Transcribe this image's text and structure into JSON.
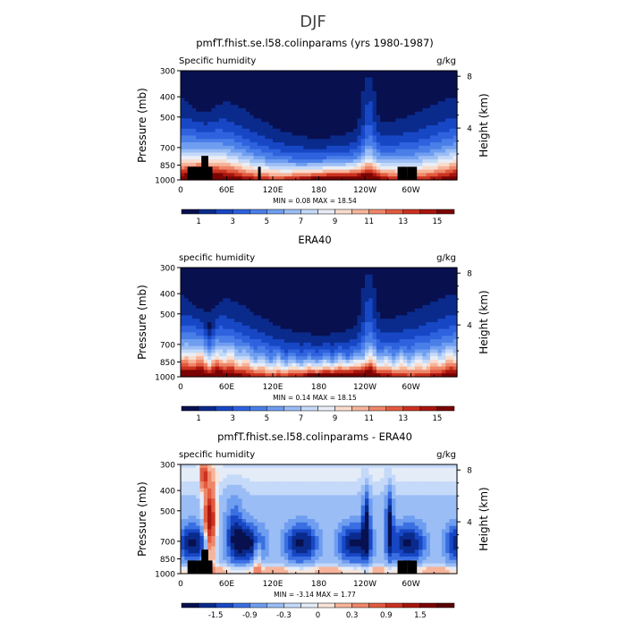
{
  "page_title": "DJF",
  "chart_data": [
    {
      "type": "heatmap",
      "title": "pmfT.fhist.se.l58.colinparams (yrs 1980-1987)",
      "left_label": "Specific humidity",
      "unit_label": "g/kg",
      "ylabel": "Pressure (mb)",
      "ylabel_right": "Height (km)",
      "y_ticks": [
        "300",
        "400",
        "500",
        "700",
        "850",
        "1000"
      ],
      "y_right_ticks": [
        "8",
        "4"
      ],
      "x_ticks": [
        "0",
        "60E",
        "120E",
        "180",
        "120W",
        "60W"
      ],
      "stats": "MIN =    0.08   MAX =   18.54",
      "colorbar_labels": [
        "1",
        "3",
        "5",
        "7",
        "9",
        "11",
        "13",
        "15"
      ],
      "colorbar_colors": [
        "#08104f",
        "#0a2b8c",
        "#1747c4",
        "#2e62de",
        "#4a7ee8",
        "#6f9ef0",
        "#9bbdf5",
        "#c5d9f9",
        "#e9eef6",
        "#f9dccd",
        "#f6b49a",
        "#ee876a",
        "#e25a3f",
        "#cb3220",
        "#a8150e",
        "#7a0403"
      ],
      "field": "abs"
    },
    {
      "type": "heatmap",
      "title": "ERA40",
      "left_label": "specific humidity",
      "unit_label": "g/kg",
      "ylabel": "Pressure (mb)",
      "ylabel_right": "Height (km)",
      "y_ticks": [
        "300",
        "400",
        "500",
        "700",
        "850",
        "1000"
      ],
      "y_right_ticks": [
        "8",
        "4"
      ],
      "x_ticks": [
        "0",
        "60E",
        "120E",
        "180",
        "120W",
        "60W"
      ],
      "stats": "MIN =    0.14   MAX =   18.15",
      "colorbar_labels": [
        "1",
        "3",
        "5",
        "7",
        "9",
        "11",
        "13",
        "15"
      ],
      "colorbar_colors": [
        "#08104f",
        "#0a2b8c",
        "#1747c4",
        "#2e62de",
        "#4a7ee8",
        "#6f9ef0",
        "#9bbdf5",
        "#c5d9f9",
        "#e9eef6",
        "#f9dccd",
        "#f6b49a",
        "#ee876a",
        "#e25a3f",
        "#cb3220",
        "#a8150e",
        "#7a0403"
      ],
      "field": "abs2"
    },
    {
      "type": "heatmap",
      "title": "pmfT.fhist.se.l58.colinparams - ERA40",
      "left_label": "specific humidity",
      "unit_label": "g/kg",
      "ylabel": "Pressure (mb)",
      "ylabel_right": "Height (km)",
      "y_ticks": [
        "300",
        "400",
        "500",
        "700",
        "850",
        "1000"
      ],
      "y_right_ticks": [
        "8",
        "4"
      ],
      "x_ticks": [
        "0",
        "60E",
        "120E",
        "180",
        "120W",
        "60W"
      ],
      "stats": "MIN =   -3.14   MAX =    1.77",
      "colorbar_labels": [
        "-1.5",
        "-0.9",
        "-0.3",
        "0",
        "0.3",
        "0.9",
        "1.5"
      ],
      "colorbar_colors": [
        "#08104f",
        "#0a2b8c",
        "#1747c4",
        "#3a6fe2",
        "#6f9ef0",
        "#9bbdf5",
        "#c5d9f9",
        "#e4ecf8",
        "#f9e4d8",
        "#f6b49a",
        "#ee876a",
        "#e25a3f",
        "#cb3220",
        "#a8150e",
        "#7a0403",
        "#5a0202"
      ],
      "field": "diff"
    }
  ]
}
